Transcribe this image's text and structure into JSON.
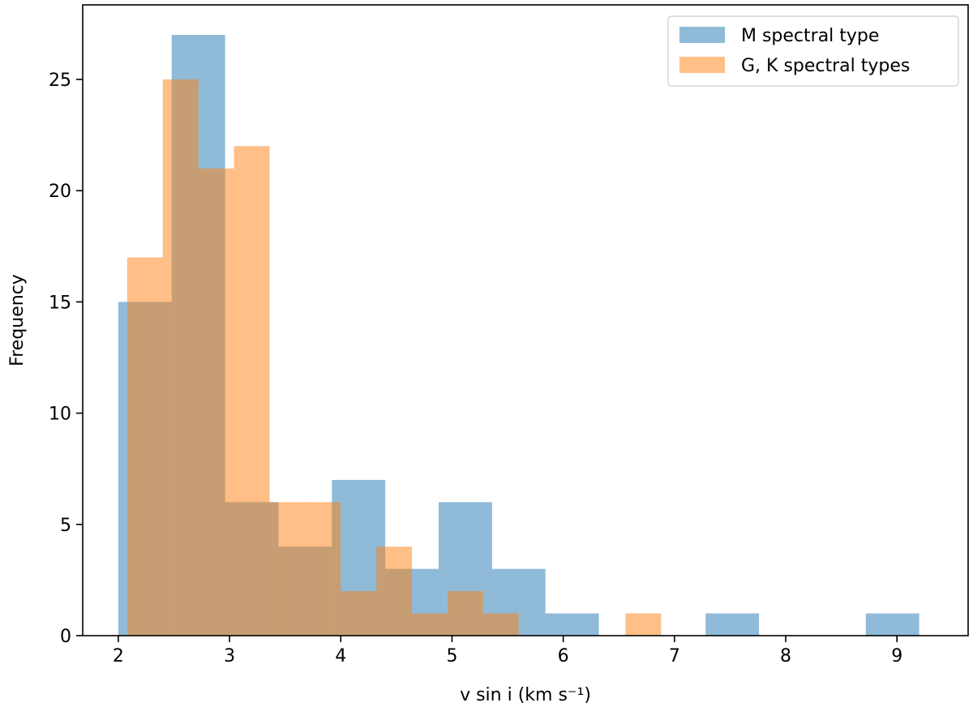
{
  "chart_data": {
    "type": "histogram",
    "xlabel": "v sin i (km s⁻¹)",
    "ylabel": "Frequency",
    "xlim": [
      1.68,
      9.64
    ],
    "ylim": [
      0,
      28.35
    ],
    "x_ticks": [
      2,
      3,
      4,
      5,
      6,
      7,
      8,
      9
    ],
    "y_ticks": [
      0,
      5,
      10,
      15,
      20,
      25
    ],
    "grid": false,
    "legend_position": "top-right",
    "series": [
      {
        "name": "M spectral type",
        "color": "#1f77b4",
        "opacity": 0.5,
        "bins": [
          {
            "x0": 2.0,
            "x1": 2.48,
            "count": 15
          },
          {
            "x0": 2.48,
            "x1": 2.96,
            "count": 27
          },
          {
            "x0": 2.96,
            "x1": 3.44,
            "count": 6
          },
          {
            "x0": 3.44,
            "x1": 3.92,
            "count": 4
          },
          {
            "x0": 3.92,
            "x1": 4.4,
            "count": 7
          },
          {
            "x0": 4.4,
            "x1": 4.88,
            "count": 3
          },
          {
            "x0": 4.88,
            "x1": 5.36,
            "count": 6
          },
          {
            "x0": 5.36,
            "x1": 5.84,
            "count": 3
          },
          {
            "x0": 5.84,
            "x1": 6.32,
            "count": 1
          },
          {
            "x0": 6.32,
            "x1": 6.8,
            "count": 0
          },
          {
            "x0": 6.8,
            "x1": 7.28,
            "count": 0
          },
          {
            "x0": 7.28,
            "x1": 7.76,
            "count": 1
          },
          {
            "x0": 7.76,
            "x1": 8.24,
            "count": 0
          },
          {
            "x0": 8.24,
            "x1": 8.72,
            "count": 0
          },
          {
            "x0": 8.72,
            "x1": 9.2,
            "count": 1
          }
        ],
        "overlay_bins": [
          {
            "x0": 2.72,
            "x1": 3.0,
            "count": 21
          },
          {
            "x0": 3.0,
            "x1": 3.4,
            "count": 6
          },
          {
            "x0": 3.4,
            "x1": 3.8,
            "count": 4
          },
          {
            "x0": 4.0,
            "x1": 4.35,
            "count": 7
          },
          {
            "x0": 4.35,
            "x1": 4.88,
            "count": 2
          },
          {
            "x0": 4.88,
            "x1": 5.36,
            "count": 3
          },
          {
            "x0": 5.36,
            "x1": 5.84,
            "count": 3
          }
        ]
      },
      {
        "name": "G, K spectral types",
        "color": "#ff7f0e",
        "opacity": 0.5,
        "bins": [
          {
            "x0": 2.08,
            "x1": 2.4,
            "count": 17
          },
          {
            "x0": 2.4,
            "x1": 2.72,
            "count": 25
          },
          {
            "x0": 2.72,
            "x1": 3.04,
            "count": 21
          },
          {
            "x0": 3.04,
            "x1": 3.36,
            "count": 22
          },
          {
            "x0": 3.36,
            "x1": 3.68,
            "count": 6
          },
          {
            "x0": 3.68,
            "x1": 4.0,
            "count": 6
          },
          {
            "x0": 4.0,
            "x1": 4.32,
            "count": 2
          },
          {
            "x0": 4.32,
            "x1": 4.64,
            "count": 4
          },
          {
            "x0": 4.64,
            "x1": 4.96,
            "count": 1
          },
          {
            "x0": 4.96,
            "x1": 5.28,
            "count": 2
          },
          {
            "x0": 5.28,
            "x1": 5.6,
            "count": 1
          },
          {
            "x0": 5.6,
            "x1": 5.92,
            "count": 0
          },
          {
            "x0": 5.92,
            "x1": 6.24,
            "count": 0
          },
          {
            "x0": 6.24,
            "x1": 6.56,
            "count": 0
          },
          {
            "x0": 6.56,
            "x1": 6.88,
            "count": 1
          }
        ]
      }
    ]
  }
}
